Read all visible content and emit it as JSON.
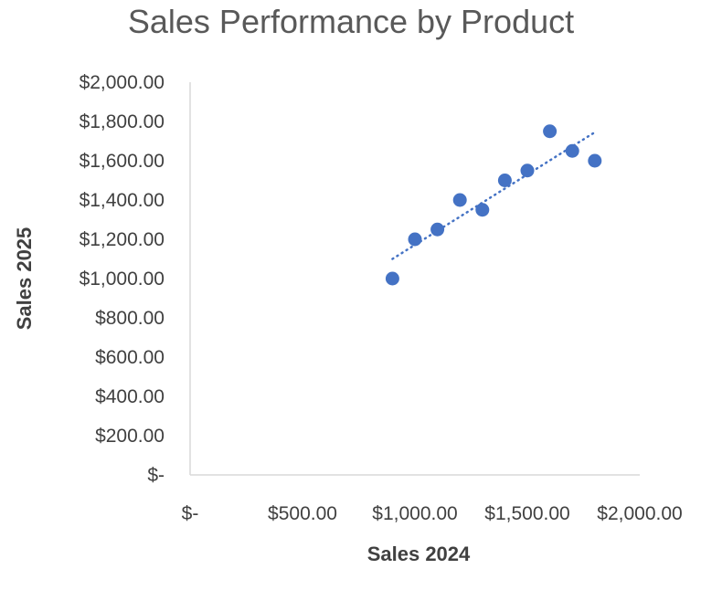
{
  "chart_data": {
    "type": "scatter",
    "title": "Sales Performance by Product",
    "xlabel": "Sales 2024",
    "ylabel": "Sales 2025",
    "xlim": [
      0,
      2000
    ],
    "ylim": [
      0,
      2000
    ],
    "x_ticks": [
      0,
      500,
      1000,
      1500,
      2000
    ],
    "x_tick_labels": [
      "$-",
      "$500.00",
      "$1,000.00",
      "$1,500.00",
      "$2,000.00"
    ],
    "y_ticks": [
      0,
      200,
      400,
      600,
      800,
      1000,
      1200,
      1400,
      1600,
      1800,
      2000
    ],
    "y_tick_labels": [
      "$-",
      "$200.00",
      "$400.00",
      "$600.00",
      "$800.00",
      "$1,000.00",
      "$1,200.00",
      "$1,400.00",
      "$1,600.00",
      "$1,800.00",
      "$2,000.00"
    ],
    "grid": false,
    "legend": "none",
    "marker_color": "#4472C4",
    "series": [
      {
        "x": [
          900,
          1000,
          1100,
          1200,
          1300,
          1400,
          1500,
          1600,
          1700,
          1800
        ],
        "y": [
          1000,
          1200,
          1250,
          1400,
          1350,
          1500,
          1550,
          1750,
          1650,
          1600
        ]
      }
    ],
    "trendline": {
      "style": "dotted-linear",
      "x_range": [
        900,
        1800
      ],
      "y_values": [
        1100,
        1745
      ]
    }
  }
}
